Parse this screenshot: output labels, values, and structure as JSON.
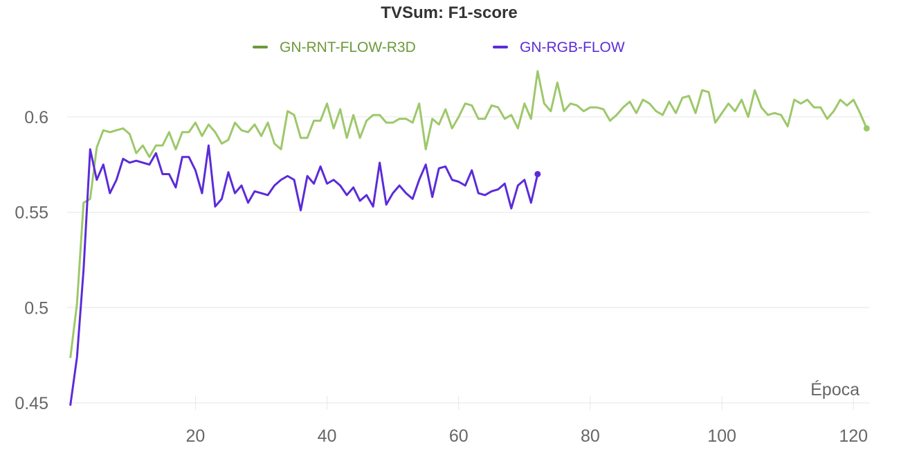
{
  "chart_data": {
    "type": "line",
    "title": "TVSum: F1-score",
    "xlabel": "Época",
    "ylabel": "",
    "xlim": [
      0.5,
      122.5
    ],
    "ylim": [
      0.45,
      0.625
    ],
    "xticks": [
      20,
      40,
      60,
      80,
      100,
      120
    ],
    "xtick_labels": [
      "20",
      "40",
      "60",
      "80",
      "100",
      "120"
    ],
    "yticks": [
      0.45,
      0.5,
      0.55,
      0.6
    ],
    "ytick_labels": [
      "0.45",
      "0.5",
      "0.55",
      "0.6"
    ],
    "grid": true,
    "legend_position": "top-center",
    "series": [
      {
        "name": "GN-RNT-FLOW-R3D",
        "color": "#9dc86a",
        "legend_color": "#6b9a3a",
        "values": [
          0.474,
          0.502,
          0.555,
          0.557,
          0.584,
          0.593,
          0.592,
          0.593,
          0.594,
          0.591,
          0.581,
          0.585,
          0.579,
          0.585,
          0.585,
          0.592,
          0.583,
          0.592,
          0.592,
          0.597,
          0.59,
          0.596,
          0.592,
          0.586,
          0.588,
          0.597,
          0.593,
          0.592,
          0.596,
          0.59,
          0.597,
          0.586,
          0.583,
          0.603,
          0.601,
          0.589,
          0.589,
          0.598,
          0.598,
          0.607,
          0.594,
          0.604,
          0.589,
          0.601,
          0.589,
          0.598,
          0.601,
          0.601,
          0.597,
          0.597,
          0.599,
          0.599,
          0.597,
          0.607,
          0.583,
          0.599,
          0.596,
          0.604,
          0.594,
          0.6,
          0.607,
          0.606,
          0.599,
          0.599,
          0.606,
          0.605,
          0.599,
          0.601,
          0.594,
          0.607,
          0.599,
          0.624,
          0.607,
          0.603,
          0.618,
          0.603,
          0.607,
          0.606,
          0.603,
          0.605,
          0.605,
          0.604,
          0.598,
          0.601,
          0.605,
          0.608,
          0.602,
          0.609,
          0.607,
          0.603,
          0.601,
          0.608,
          0.602,
          0.61,
          0.611,
          0.602,
          0.614,
          0.613,
          0.597,
          0.602,
          0.607,
          0.603,
          0.609,
          0.6,
          0.614,
          0.605,
          0.601,
          0.602,
          0.601,
          0.595,
          0.609,
          0.607,
          0.609,
          0.605,
          0.605,
          0.599,
          0.603,
          0.609,
          0.606,
          0.609,
          0.602,
          0.594
        ]
      },
      {
        "name": "GN-RGB-FLOW",
        "color": "#5b2bd9",
        "legend_color": "#5b2bd9",
        "values": [
          0.449,
          0.474,
          0.52,
          0.583,
          0.567,
          0.575,
          0.56,
          0.567,
          0.578,
          0.576,
          0.577,
          0.576,
          0.575,
          0.581,
          0.57,
          0.57,
          0.563,
          0.579,
          0.579,
          0.572,
          0.56,
          0.585,
          0.553,
          0.557,
          0.571,
          0.56,
          0.564,
          0.555,
          0.561,
          0.56,
          0.559,
          0.564,
          0.567,
          0.569,
          0.567,
          0.551,
          0.569,
          0.565,
          0.574,
          0.565,
          0.567,
          0.564,
          0.559,
          0.563,
          0.556,
          0.559,
          0.553,
          0.576,
          0.554,
          0.56,
          0.564,
          0.56,
          0.557,
          0.567,
          0.575,
          0.558,
          0.573,
          0.574,
          0.567,
          0.566,
          0.564,
          0.572,
          0.56,
          0.559,
          0.561,
          0.562,
          0.565,
          0.552,
          0.564,
          0.567,
          0.555,
          0.57
        ]
      }
    ]
  }
}
